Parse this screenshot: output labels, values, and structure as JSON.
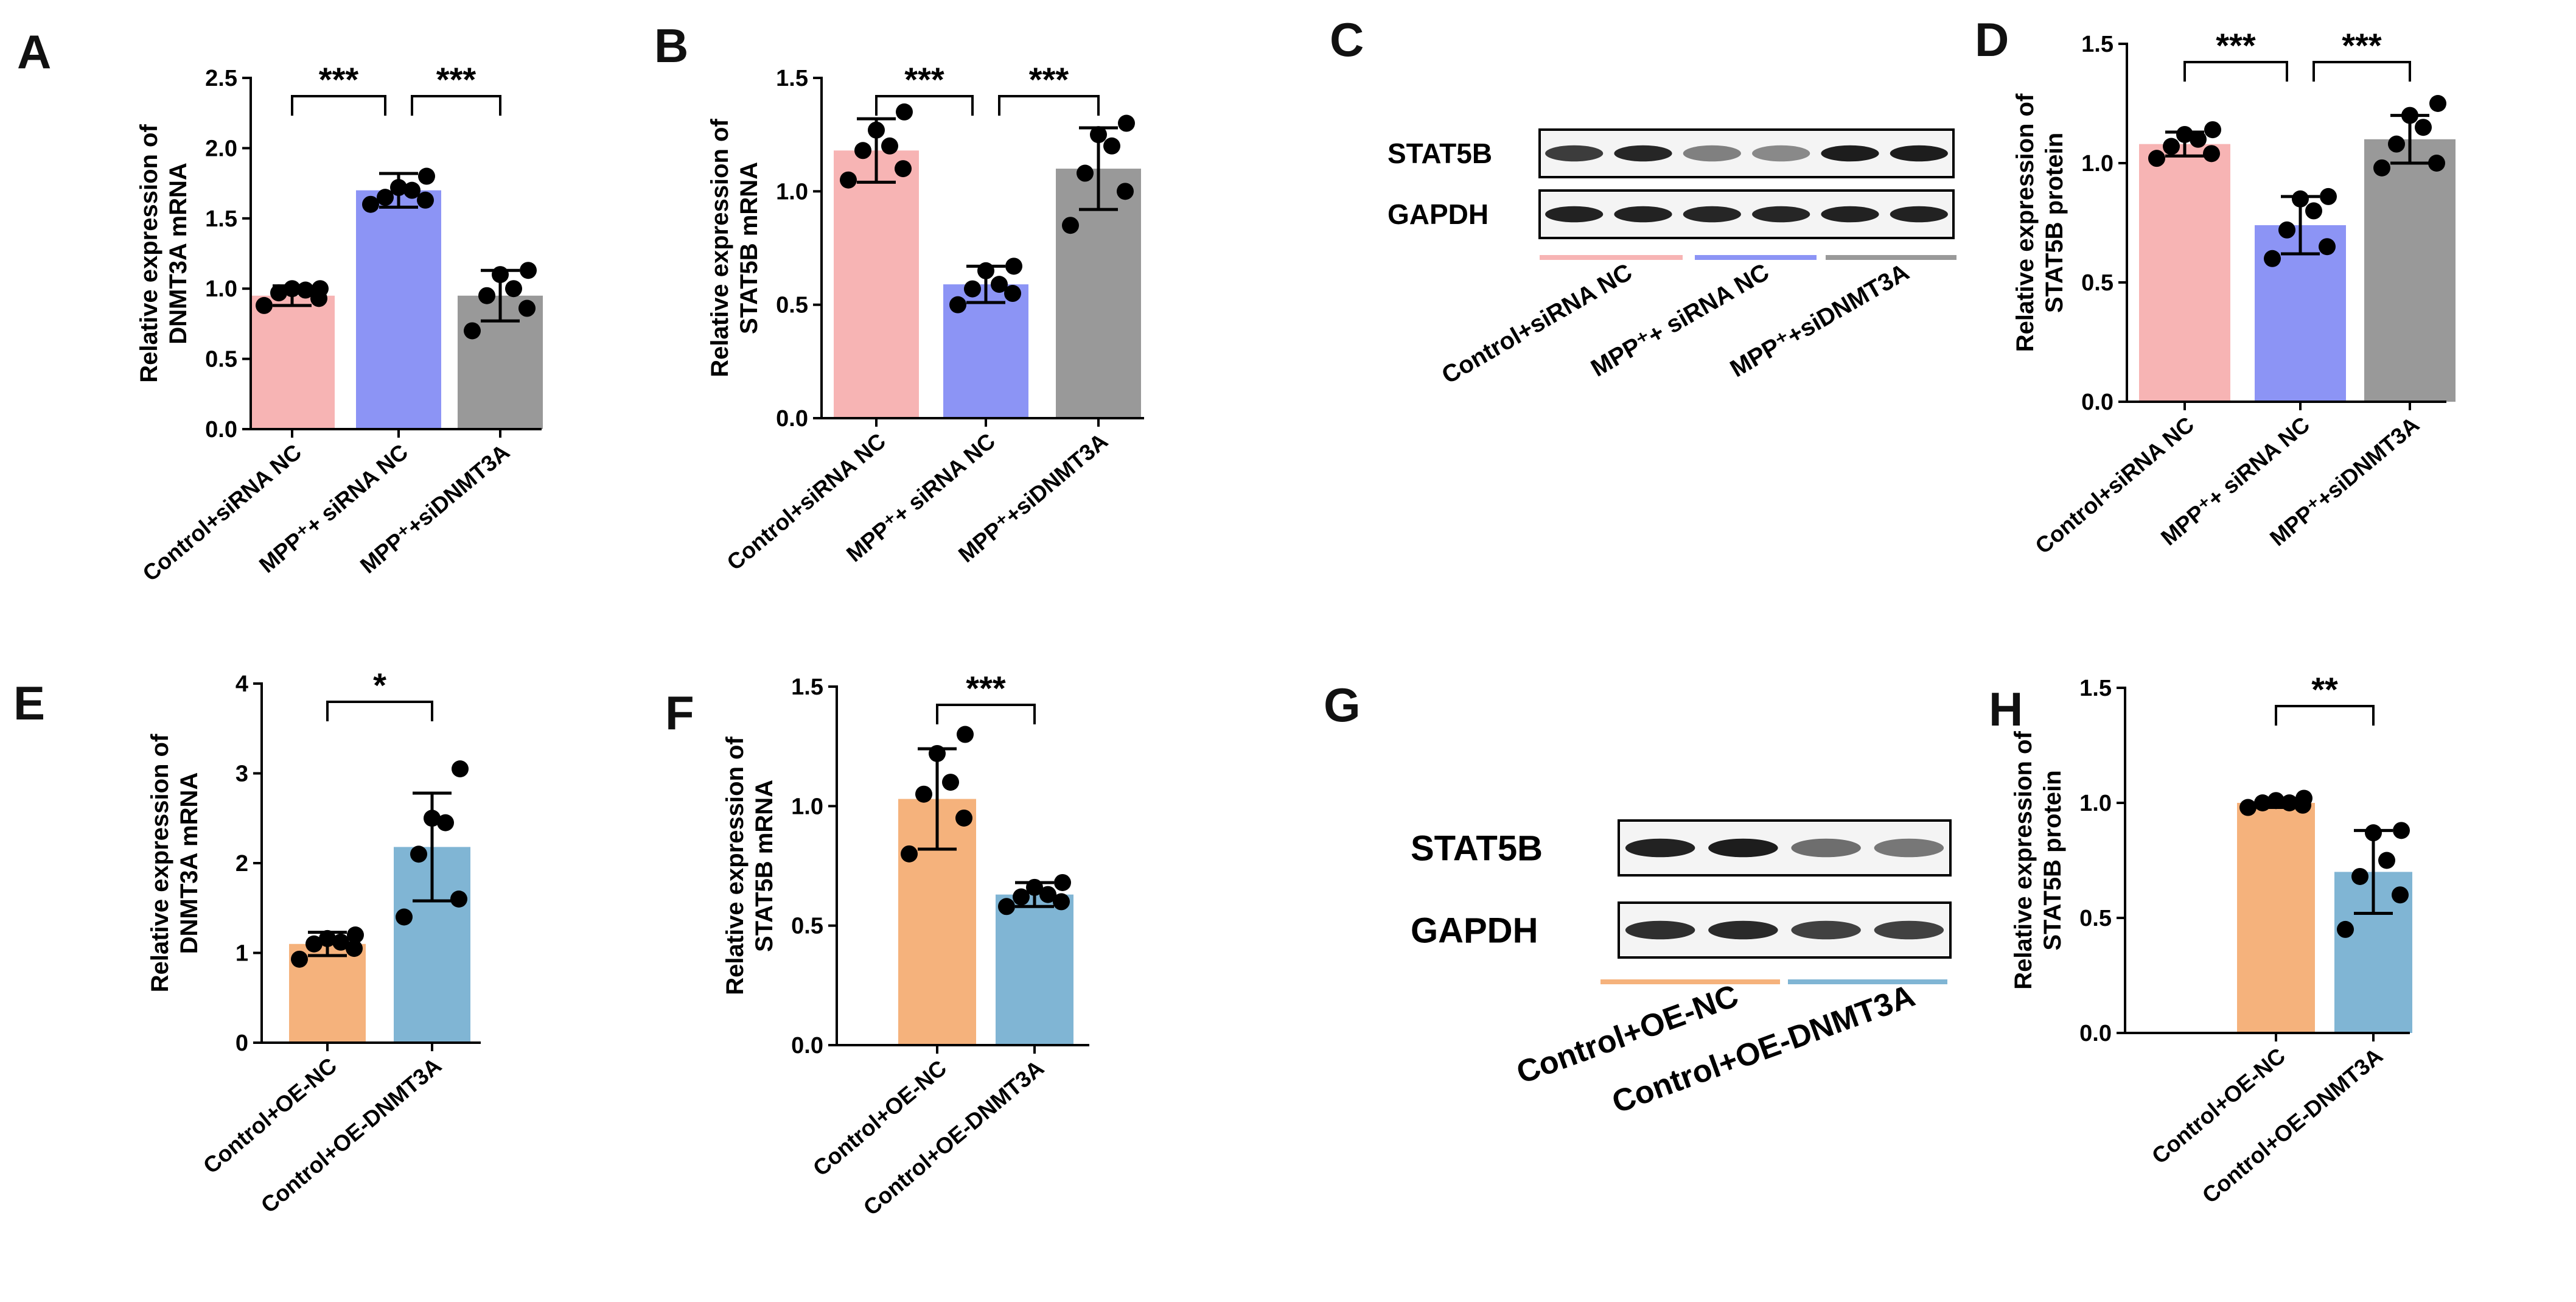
{
  "chart_data": [
    {
      "panel": "A",
      "type": "bar",
      "categories": [
        "Control+siRNA NC",
        "MPP⁺+ siRNA NC",
        "MPP⁺+siDNMT3A"
      ],
      "values": [
        0.95,
        1.7,
        0.95
      ],
      "errors": [
        0.07,
        0.12,
        0.18
      ],
      "points": [
        [
          0.88,
          0.93,
          0.97,
          0.99,
          1.0,
          1.0
        ],
        [
          1.6,
          1.63,
          1.65,
          1.7,
          1.72,
          1.8
        ],
        [
          0.7,
          0.86,
          0.95,
          1.0,
          1.1,
          1.13
        ]
      ],
      "colors": [
        "#f7b4b4",
        "#8c94f5",
        "#999999"
      ],
      "ylabel": "Relative expression of DNMT3A mRNA",
      "ylim": [
        0,
        2.5
      ],
      "yticks": [
        0.0,
        0.5,
        1.0,
        1.5,
        2.0,
        2.5
      ],
      "significance": [
        {
          "from": 0,
          "to": 1,
          "label": "***"
        },
        {
          "from": 1,
          "to": 2,
          "label": "***"
        }
      ]
    },
    {
      "panel": "B",
      "type": "bar",
      "categories": [
        "Control+siRNA NC",
        "MPP⁺+ siRNA NC",
        "MPP⁺+siDNMT3A"
      ],
      "values": [
        1.18,
        0.59,
        1.1
      ],
      "errors": [
        0.14,
        0.08,
        0.18
      ],
      "points": [
        [
          1.05,
          1.1,
          1.18,
          1.2,
          1.27,
          1.35
        ],
        [
          0.5,
          0.55,
          0.57,
          0.59,
          0.65,
          0.67
        ],
        [
          0.85,
          1.0,
          1.08,
          1.2,
          1.25,
          1.3
        ]
      ],
      "colors": [
        "#f7b4b4",
        "#8c94f5",
        "#999999"
      ],
      "ylabel": "Relative expression of STAT5B mRNA",
      "ylim": [
        0,
        1.5
      ],
      "yticks": [
        0.0,
        0.5,
        1.0,
        1.5
      ],
      "significance": [
        {
          "from": 0,
          "to": 1,
          "label": "***"
        },
        {
          "from": 1,
          "to": 2,
          "label": "***"
        }
      ]
    },
    {
      "panel": "D",
      "type": "bar",
      "categories": [
        "Control+siRNA NC",
        "MPP⁺+ siRNA NC",
        "MPP⁺+siDNMT3A"
      ],
      "values": [
        1.08,
        0.74,
        1.1
      ],
      "errors": [
        0.05,
        0.12,
        0.1
      ],
      "points": [
        [
          1.02,
          1.04,
          1.07,
          1.1,
          1.12,
          1.14
        ],
        [
          0.6,
          0.65,
          0.72,
          0.8,
          0.85,
          0.86
        ],
        [
          0.98,
          1.0,
          1.08,
          1.15,
          1.2,
          1.25
        ]
      ],
      "colors": [
        "#f7b4b4",
        "#8c94f5",
        "#999999"
      ],
      "ylabel": "Relative expression of STAT5B protein",
      "ylim": [
        0,
        1.5
      ],
      "yticks": [
        0.0,
        0.5,
        1.0,
        1.5
      ],
      "significance": [
        {
          "from": 0,
          "to": 1,
          "label": "***"
        },
        {
          "from": 1,
          "to": 2,
          "label": "***"
        }
      ]
    },
    {
      "panel": "E",
      "type": "bar",
      "categories": [
        "Control+OE-NC",
        "Control+OE-DNMT3A"
      ],
      "values": [
        1.1,
        2.18
      ],
      "errors": [
        0.13,
        0.6
      ],
      "points": [
        [
          0.93,
          1.05,
          1.1,
          1.12,
          1.16,
          1.2
        ],
        [
          1.4,
          1.6,
          2.1,
          2.45,
          2.5,
          3.05
        ]
      ],
      "colors": [
        "#f5b27c",
        "#80b5d4"
      ],
      "ylabel": "Relative expression of DNMT3A mRNA",
      "ylim": [
        0,
        4
      ],
      "yticks": [
        0,
        1,
        2,
        3,
        4
      ],
      "significance": [
        {
          "from": 0,
          "to": 1,
          "label": "*"
        }
      ]
    },
    {
      "panel": "F",
      "type": "bar",
      "categories": [
        "Control+OE-NC",
        "Control+OE-DNMT3A"
      ],
      "values": [
        1.03,
        0.63
      ],
      "errors": [
        0.21,
        0.05
      ],
      "points": [
        [
          0.8,
          0.95,
          1.05,
          1.1,
          1.22,
          1.3
        ],
        [
          0.58,
          0.6,
          0.62,
          0.63,
          0.66,
          0.68
        ]
      ],
      "colors": [
        "#f5b27c",
        "#80b5d4"
      ],
      "ylabel": "Relative expression of STAT5B mRNA",
      "ylim": [
        0,
        1.5
      ],
      "yticks": [
        0.0,
        0.5,
        1.0,
        1.5
      ],
      "significance": [
        {
          "from": 0,
          "to": 1,
          "label": "***"
        }
      ]
    },
    {
      "panel": "H",
      "type": "bar",
      "categories": [
        "Control+OE-NC",
        "Control+OE-DNMT3A"
      ],
      "values": [
        1.0,
        0.7
      ],
      "errors": [
        0.02,
        0.18
      ],
      "points": [
        [
          0.98,
          0.99,
          1.0,
          1.0,
          1.01,
          1.02
        ],
        [
          0.45,
          0.6,
          0.68,
          0.75,
          0.87,
          0.88
        ]
      ],
      "colors": [
        "#f5b27c",
        "#80b5d4"
      ],
      "ylabel": "Relative expression of STAT5B protein",
      "ylim": [
        0,
        1.5
      ],
      "yticks": [
        0.0,
        0.5,
        1.0,
        1.5
      ],
      "significance": [
        {
          "from": 0,
          "to": 1,
          "label": "**"
        }
      ]
    }
  ],
  "blots": [
    {
      "panel": "C",
      "type": "western-blot",
      "rows": [
        "STAT5B",
        "GAPDH"
      ],
      "lanes": [
        "Control+siRNA NC",
        "MPP⁺+ siRNA NC",
        "MPP⁺+siDNMT3A"
      ],
      "lane_colors": [
        "#f7b4b4",
        "#8c94f5",
        "#999999"
      ],
      "stat5b_intensity": [
        0.78,
        0.9,
        0.4,
        0.35,
        0.95,
        0.95
      ],
      "gapdh_intensity": [
        0.92,
        0.92,
        0.9,
        0.9,
        0.92,
        0.92
      ]
    },
    {
      "panel": "G",
      "type": "western-blot",
      "rows": [
        "STAT5B",
        "GAPDH"
      ],
      "lanes": [
        "Control+OE-NC",
        "Control+OE-DNMT3A"
      ],
      "lane_colors": [
        "#f5b27c",
        "#80b5d4"
      ],
      "stat5b_intensity": [
        0.92,
        0.95,
        0.5,
        0.45
      ],
      "gapdh_intensity": [
        0.85,
        0.88,
        0.75,
        0.75
      ]
    }
  ]
}
